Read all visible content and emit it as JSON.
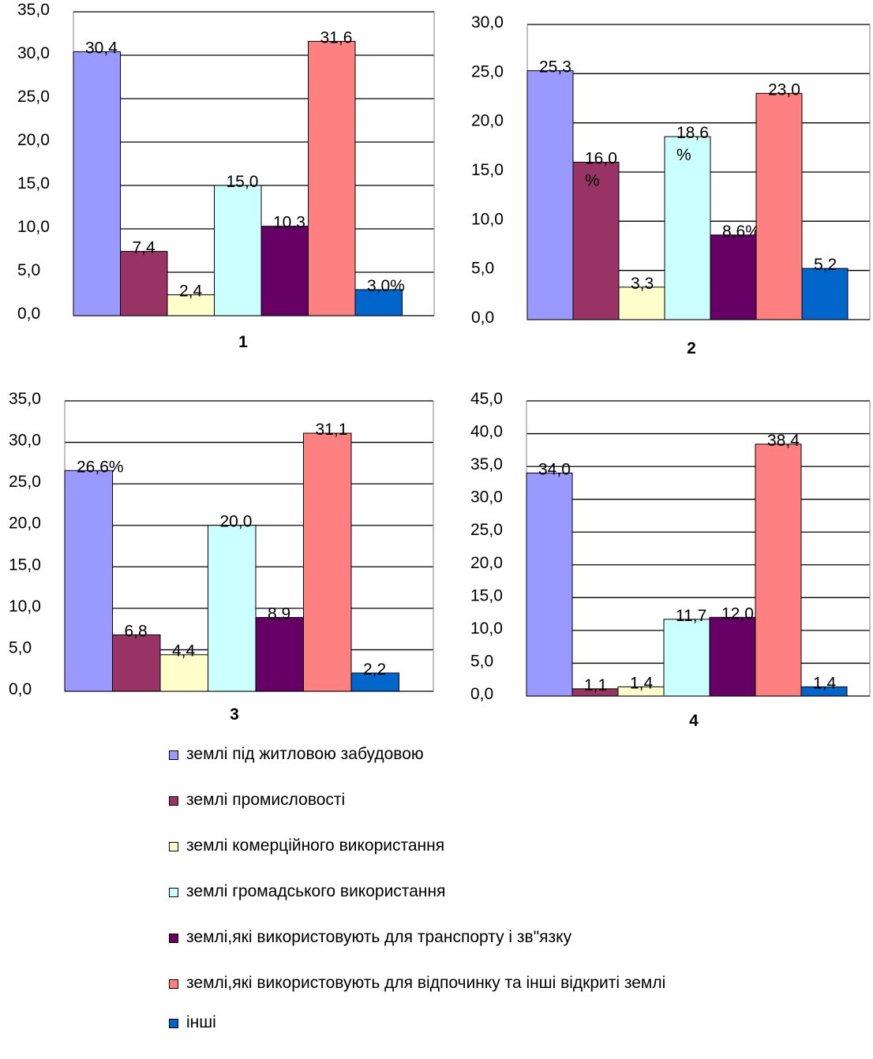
{
  "chart_data": [
    {
      "type": "bar",
      "title": "1",
      "ylim": [
        0,
        35
      ],
      "yticks": [
        "0,0",
        "5,0",
        "10,0",
        "15,0",
        "20,0",
        "25,0",
        "30,0",
        "35,0"
      ],
      "values": [
        30.4,
        7.4,
        2.4,
        15.0,
        10.3,
        31.6,
        3.0
      ],
      "labels": [
        "30,4",
        "7,4",
        "2,4",
        "15,0",
        "10,3",
        "31,6",
        "3,0%"
      ]
    },
    {
      "type": "bar",
      "title": "2",
      "ylim": [
        0,
        30
      ],
      "yticks": [
        "0,0",
        "5,0",
        "10,0",
        "15,0",
        "20,0",
        "25,0",
        "30,0"
      ],
      "values": [
        25.3,
        16.0,
        3.3,
        18.6,
        8.6,
        23.0,
        5.2
      ],
      "labels": [
        "25,3",
        "16,0\n%",
        "3,3",
        "18,6\n%",
        "8,6%",
        "23,0",
        "5,2"
      ]
    },
    {
      "type": "bar",
      "title": "3",
      "ylim": [
        0,
        35
      ],
      "yticks": [
        "0,0",
        "5,0",
        "10,0",
        "15,0",
        "20,0",
        "25,0",
        "30,0",
        "35,0"
      ],
      "values": [
        26.6,
        6.8,
        4.4,
        20.0,
        8.9,
        31.1,
        2.2
      ],
      "labels": [
        "26,6%",
        "6,8",
        "4,4",
        "20,0",
        "8,9",
        "31,1",
        "2,2"
      ]
    },
    {
      "type": "bar",
      "title": "4",
      "ylim": [
        0,
        45
      ],
      "yticks": [
        "0,0",
        "5,0",
        "10,0",
        "15,0",
        "20,0",
        "25,0",
        "30,0",
        "35,0",
        "40,0",
        "45,0"
      ],
      "values": [
        34.0,
        1.1,
        1.4,
        11.7,
        12.0,
        38.4,
        1.4
      ],
      "labels": [
        "34,0",
        "1,1",
        "1,4",
        "11,7",
        "12,0",
        "38,4",
        "1,4"
      ]
    }
  ],
  "legend": [
    {
      "label": "землі під житловою забудовою",
      "color": "#9999ff"
    },
    {
      "label": "землі промисловості",
      "color": "#993366"
    },
    {
      "label": "землі комерційного використання",
      "color": "#ffffcc"
    },
    {
      "label": "землі громадського використання",
      "color": "#ccffff"
    },
    {
      "label": "землі,які використовують для транспорту і зв\"язку",
      "color": "#660066"
    },
    {
      "label": "землі,які використовують для відпочинку та інші відкриті землі",
      "color": "#ff8080"
    },
    {
      "label": "інші",
      "color": "#0066cc"
    }
  ]
}
